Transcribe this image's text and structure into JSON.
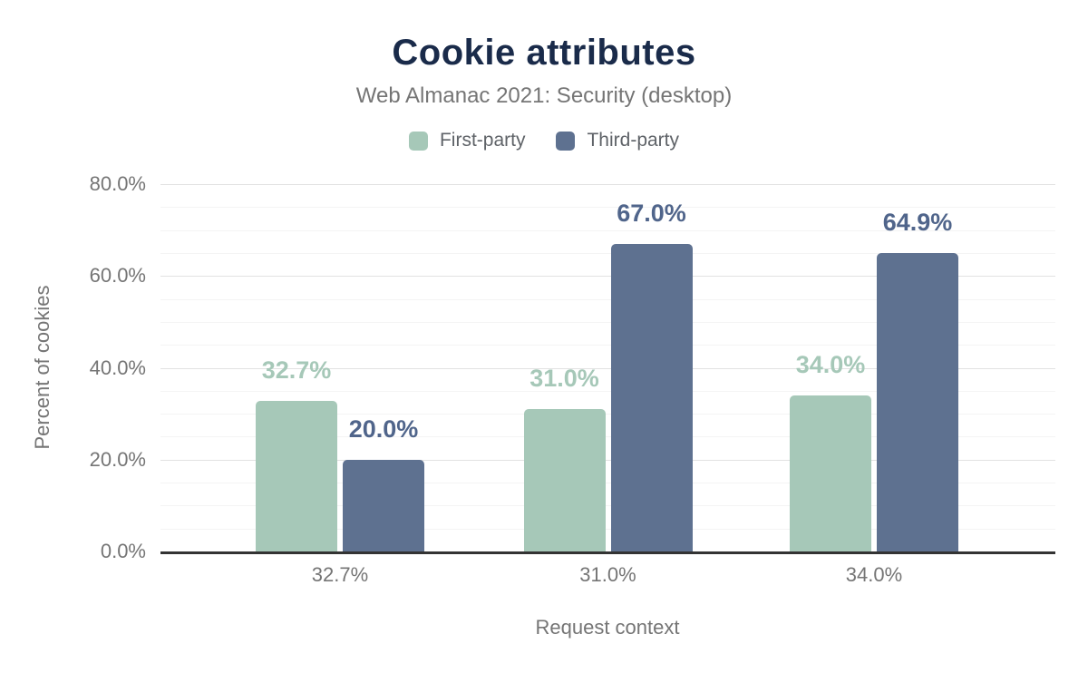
{
  "chart_data": {
    "type": "bar",
    "title": "Cookie attributes",
    "subtitle": "Web Almanac 2021: Security (desktop)",
    "xlabel": "Request context",
    "ylabel": "Percent of cookies",
    "categories": [
      "32.7%",
      "31.0%",
      "34.0%"
    ],
    "series": [
      {
        "name": "First-party",
        "color": "#a6c8b8",
        "label_color": "#a6c8b8",
        "values": [
          32.7,
          31.0,
          34.0
        ],
        "value_labels": [
          "32.7%",
          "31.0%",
          "34.0%"
        ]
      },
      {
        "name": "Third-party",
        "color": "#5e7190",
        "label_color": "#50658b",
        "values": [
          20.0,
          67.0,
          64.9
        ],
        "value_labels": [
          "20.0%",
          "67.0%",
          "64.9%"
        ]
      }
    ],
    "ylim": [
      0,
      80
    ],
    "y_ticks": [
      {
        "value": 0,
        "label": "0.0%"
      },
      {
        "value": 20,
        "label": "20.0%"
      },
      {
        "value": 40,
        "label": "40.0%"
      },
      {
        "value": 60,
        "label": "60.0%"
      },
      {
        "value": 80,
        "label": "80.0%"
      }
    ],
    "grid": {
      "minor_step": 5,
      "major_step": 20,
      "minor_color": "#f4f4f4",
      "major_color": "#e2e2e2",
      "baseline_color": "#333333"
    },
    "legend_position": "top",
    "colors": {
      "title": "#1a2b4a",
      "subtitle": "#757575",
      "axis_text": "#757575",
      "legend_text": "#5f6368",
      "background": "#ffffff"
    }
  }
}
